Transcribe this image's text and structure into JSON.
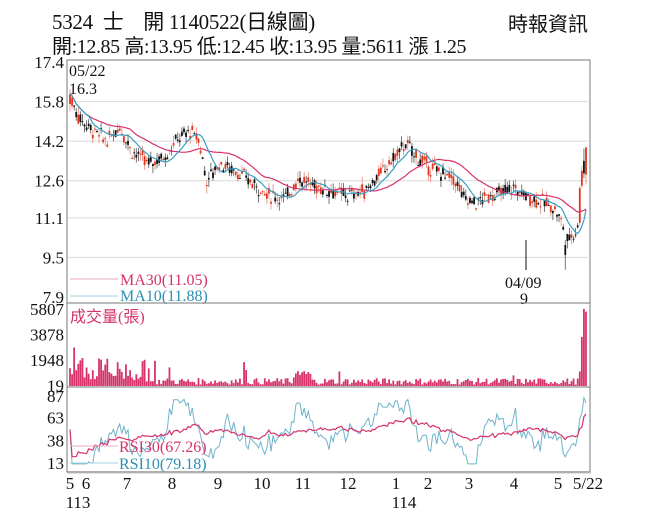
{
  "header": {
    "title": "5324  士    開 1140522(日線圖)",
    "source": "時報資訊",
    "ohlc_line": "開:12.85 高:13.95 低:12.45 收:13.95 量:5611 漲 1.25"
  },
  "colors": {
    "up": "#e0351f",
    "down": "#111111",
    "ma30": "#d6336c",
    "ma10": "#3a9ec2",
    "volume": "#d6336c",
    "rsi30": "#d6336c",
    "rsi10": "#6fb3c9",
    "grid": "#d9d9d9",
    "axis": "#666666"
  },
  "price_panel": {
    "y_ticks": [
      "17.4",
      "15.8",
      "14.2",
      "12.6",
      "11.1",
      "9.5",
      "7.9"
    ],
    "high_annotation": {
      "date": "05/22",
      "value": "16.3"
    },
    "low_annotation": {
      "date": "04/09",
      "value": "9"
    },
    "legend": {
      "ma30": "MA30(11.05)",
      "ma10": "MA10(11.88)"
    }
  },
  "volume_panel": {
    "label": "成交量(張)",
    "y_ticks": [
      "5807",
      "3878",
      "1948",
      "19"
    ]
  },
  "rsi_panel": {
    "y_ticks": [
      "87",
      "63",
      "38",
      "13"
    ],
    "legend": {
      "rsi30": "RSI30(67.26)",
      "rsi10": "RSI10(79.18)"
    }
  },
  "x_axis": {
    "ticks": [
      "5",
      "6",
      "7",
      "8",
      "9",
      "10",
      "11",
      "12",
      "1",
      "2",
      "3",
      "4",
      "5",
      "5/22"
    ],
    "year_labels": [
      {
        "label": "113",
        "under": "5"
      },
      {
        "label": "114",
        "under": "1"
      }
    ]
  },
  "chart_data": {
    "type": "candlestick",
    "title": "5324 士開 1140522(日線圖)",
    "xlabel": "",
    "ylabel": "",
    "ylim": [
      7.9,
      17.4
    ],
    "grid": true,
    "x": [
      "113/05",
      "113/06",
      "113/07",
      "113/08",
      "113/09",
      "113/10",
      "113/11",
      "113/12",
      "114/01",
      "114/02",
      "114/03",
      "114/04",
      "114/05",
      "114/05/22"
    ],
    "series": [
      {
        "name": "Close (approx monthly)",
        "values": [
          15.6,
          14.6,
          13.4,
          14.4,
          12.2,
          12.3,
          12.1,
          14.2,
          12.5,
          11.8,
          11.9,
          9.9,
          10.9,
          13.95
        ]
      },
      {
        "name": "MA30",
        "values": [
          14.9,
          14.7,
          13.9,
          13.7,
          13.3,
          12.4,
          12.0,
          12.8,
          13.0,
          12.1,
          12.0,
          11.2,
          10.8,
          11.05
        ]
      },
      {
        "name": "MA10",
        "values": [
          15.0,
          14.3,
          13.4,
          14.3,
          12.5,
          12.2,
          11.9,
          13.6,
          12.7,
          11.8,
          11.8,
          10.2,
          10.9,
          11.88
        ]
      },
      {
        "name": "Volume (張)",
        "values": [
          2400,
          1700,
          900,
          1300,
          700,
          900,
          600,
          1500,
          400,
          500,
          500,
          1200,
          600,
          5611
        ]
      },
      {
        "name": "RSI30",
        "values": [
          60,
          56,
          52,
          58,
          47,
          49,
          51,
          60,
          46,
          48,
          48,
          42,
          52,
          67.26
        ]
      },
      {
        "name": "RSI10",
        "values": [
          58,
          48,
          42,
          72,
          32,
          45,
          50,
          75,
          25,
          48,
          42,
          18,
          55,
          79.18
        ]
      }
    ],
    "annotations": [
      {
        "text": "05/22 16.3",
        "type": "period high"
      },
      {
        "text": "04/09 9",
        "type": "period low"
      }
    ],
    "legend": [
      "MA30(11.05)",
      "MA10(11.88)",
      "成交量(張)",
      "RSI30(67.26)",
      "RSI10(79.18)"
    ],
    "last": {
      "open": 12.85,
      "high": 13.95,
      "low": 12.45,
      "close": 13.95,
      "volume": 5611,
      "change": 1.25
    }
  }
}
